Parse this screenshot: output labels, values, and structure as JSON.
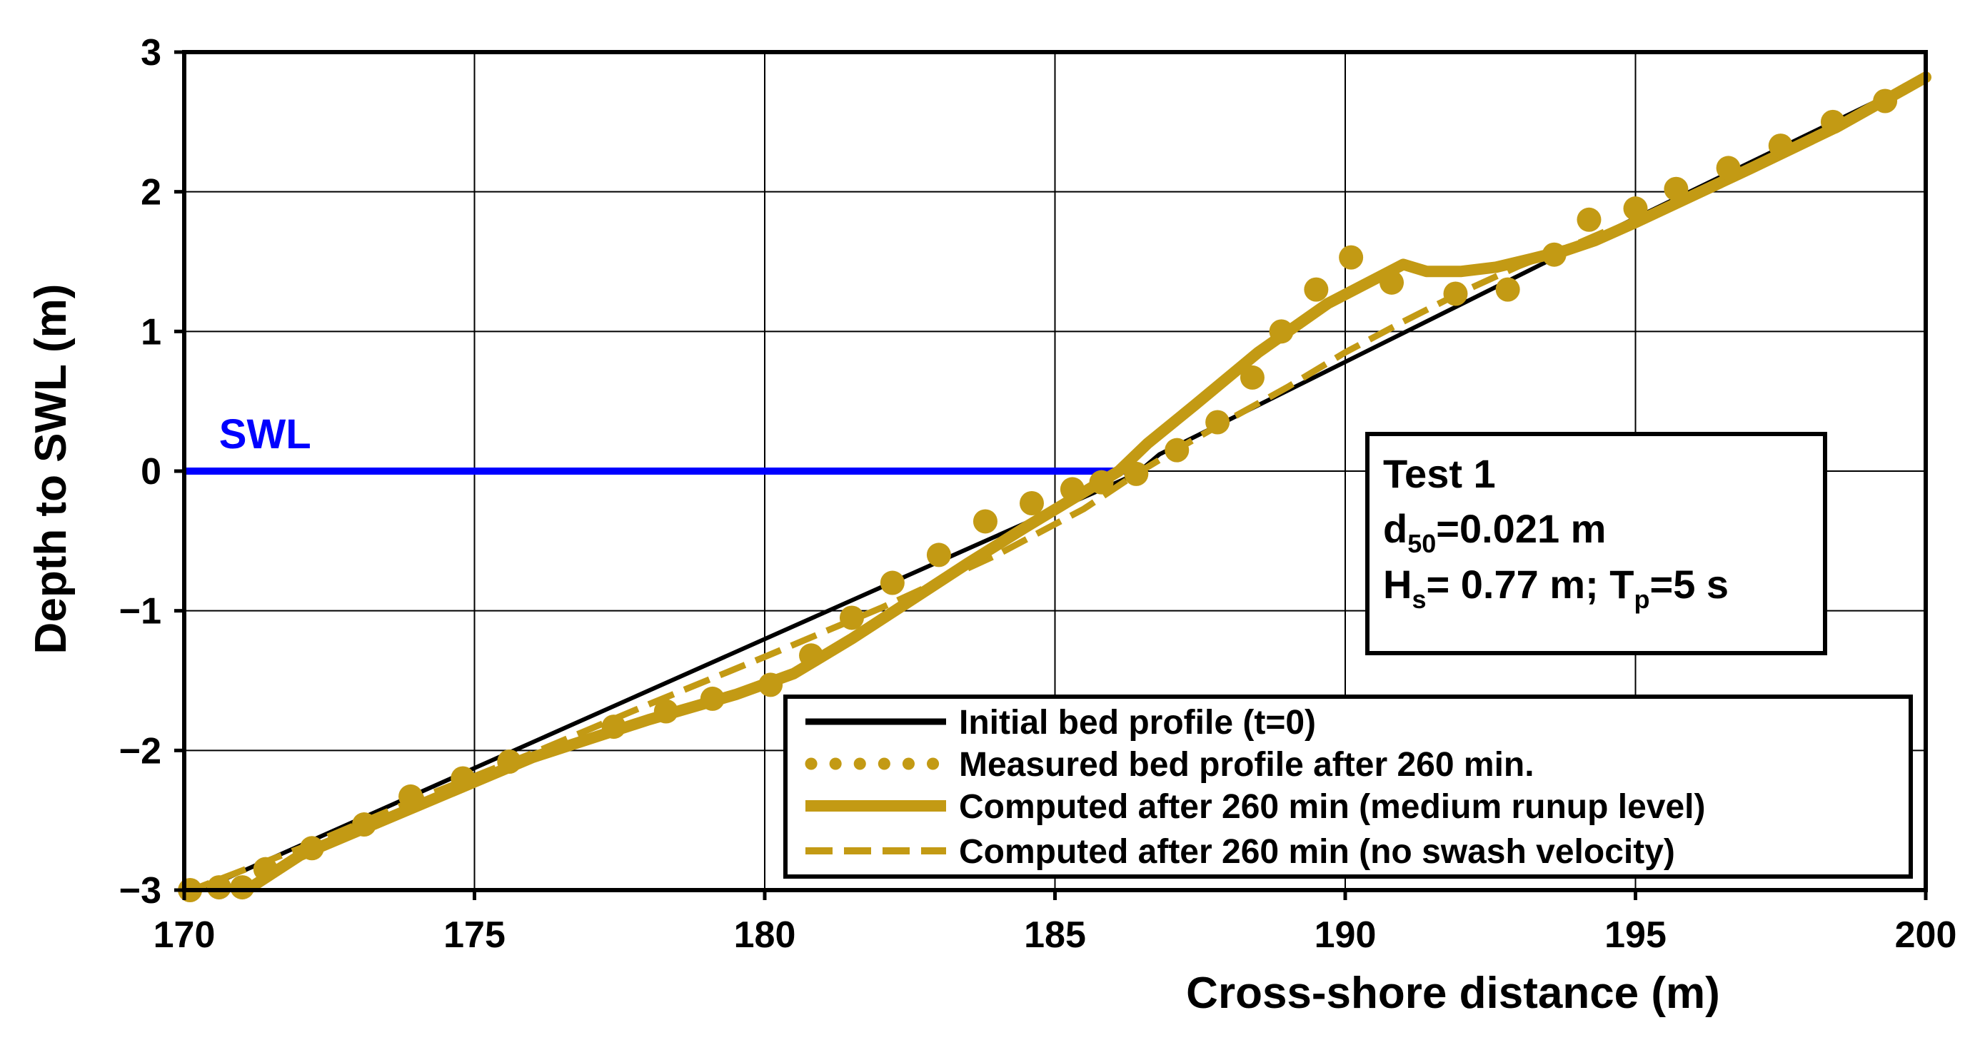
{
  "chart_data": {
    "type": "line",
    "xlabel": "Cross-shore distance (m)",
    "ylabel": "Depth to SWL (m)",
    "xlim": [
      170,
      200
    ],
    "ylim": [
      -3,
      3
    ],
    "x_ticks": [
      "170",
      "175",
      "180",
      "185",
      "190",
      "195",
      "200"
    ],
    "y_ticks": [
      "3",
      "2",
      "1",
      "0",
      "−1",
      "−2",
      "−3"
    ],
    "grid": true,
    "legend_position": "bottom-right",
    "colors": {
      "profile": "#c39a14",
      "initial": "#000000",
      "swl": "#0000ff",
      "frame": "#000000"
    },
    "swl": {
      "label": "SWL",
      "y": 0,
      "x_start": 170,
      "x_end": 186.2
    },
    "info_box": {
      "line1": "Test 1",
      "line2_main": "d",
      "line2_sub": "50",
      "line2_rest": "=0.021 m",
      "line3_a": "H",
      "line3_a_sub": "s",
      "line3_b": "= 0.77 m; T",
      "line3_b_sub": "p",
      "line3_c": "=5 s"
    },
    "series": [
      {
        "name": "Initial bed profile (t=0)",
        "style": "solid-thin",
        "x": [
          170,
          186.4,
          186.8,
          194.2,
          200
        ],
        "y": [
          -3.05,
          -0.02,
          0.12,
          1.65,
          2.82
        ]
      },
      {
        "name": "Measured bed profile after 260 min.",
        "style": "dots",
        "x": [
          170.1,
          170.6,
          171.0,
          171.4,
          172.2,
          173.1,
          173.9,
          174.8,
          175.6,
          177.4,
          178.3,
          179.1,
          180.1,
          180.8,
          181.5,
          182.2,
          183.0,
          183.8,
          184.6,
          185.3,
          185.8,
          186.4,
          187.1,
          187.8,
          188.4,
          188.9,
          189.5,
          190.1,
          190.8,
          191.9,
          192.8,
          193.6,
          194.2,
          195.0,
          195.7,
          196.6,
          197.5,
          198.4,
          199.3
        ],
        "y": [
          -3.0,
          -2.98,
          -2.98,
          -2.85,
          -2.7,
          -2.53,
          -2.33,
          -2.2,
          -2.08,
          -1.83,
          -1.72,
          -1.63,
          -1.53,
          -1.32,
          -1.05,
          -0.8,
          -0.6,
          -0.36,
          -0.23,
          -0.13,
          -0.08,
          -0.02,
          0.15,
          0.35,
          0.67,
          1.0,
          1.3,
          1.53,
          1.35,
          1.27,
          1.3,
          1.55,
          1.8,
          1.88,
          2.02,
          2.17,
          2.33,
          2.5,
          2.65
        ]
      },
      {
        "name": "Computed after 260 min (medium runup level)",
        "style": "solid-thick",
        "x": [
          171.0,
          172.0,
          174.0,
          176.0,
          178.0,
          179.5,
          180.5,
          181.5,
          182.5,
          183.5,
          184.5,
          185.5,
          186.1,
          186.6,
          187.4,
          188.5,
          189.7,
          191.0,
          191.4,
          192.0,
          192.6,
          193.2,
          193.8,
          194.3,
          195.0,
          197.0,
          198.5,
          200.0
        ],
        "y": [
          -3.02,
          -2.75,
          -2.4,
          -2.05,
          -1.78,
          -1.6,
          -1.45,
          -1.2,
          -0.93,
          -0.66,
          -0.4,
          -0.15,
          0.0,
          0.2,
          0.47,
          0.85,
          1.2,
          1.48,
          1.43,
          1.43,
          1.46,
          1.52,
          1.58,
          1.65,
          1.78,
          2.17,
          2.47,
          2.82
        ]
      },
      {
        "name": "Computed after 260 min (no swash velocity)",
        "style": "dashed",
        "x": [
          170.0,
          172.0,
          174.0,
          176.0,
          178.0,
          180.0,
          182.0,
          184.0,
          185.5,
          186.4,
          187.2,
          188.0,
          189.0,
          190.0,
          191.0,
          192.0,
          193.0,
          194.0,
          194.5
        ],
        "y": [
          -3.02,
          -2.7,
          -2.35,
          -2.02,
          -1.67,
          -1.33,
          -0.98,
          -0.6,
          -0.27,
          -0.02,
          0.18,
          0.37,
          0.6,
          0.85,
          1.07,
          1.28,
          1.47,
          1.63,
          1.72
        ]
      }
    ]
  }
}
